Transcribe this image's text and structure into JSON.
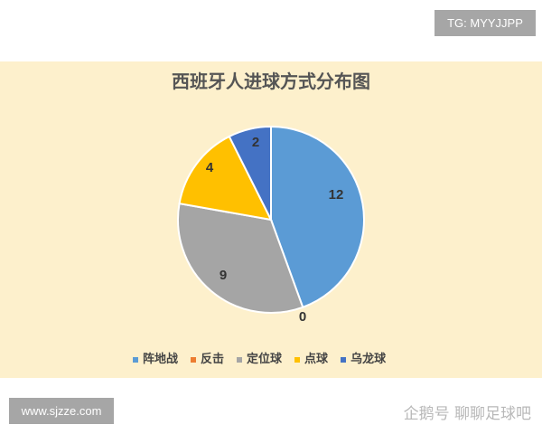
{
  "badge_top": "TG: MYYJJPP",
  "badge_bottom": "www.sjzze.com",
  "watermark": "企鹅号 聊聊足球吧",
  "chart_data": {
    "type": "pie",
    "title": "西班牙人进球方式分布图",
    "categories": [
      "阵地战",
      "反击",
      "定位球",
      "点球",
      "乌龙球"
    ],
    "values": [
      12,
      0,
      9,
      4,
      2
    ],
    "colors": [
      "#5b9bd5",
      "#ed7d31",
      "#a5a5a5",
      "#ffc000",
      "#4472c4"
    ],
    "legend_position": "bottom"
  }
}
